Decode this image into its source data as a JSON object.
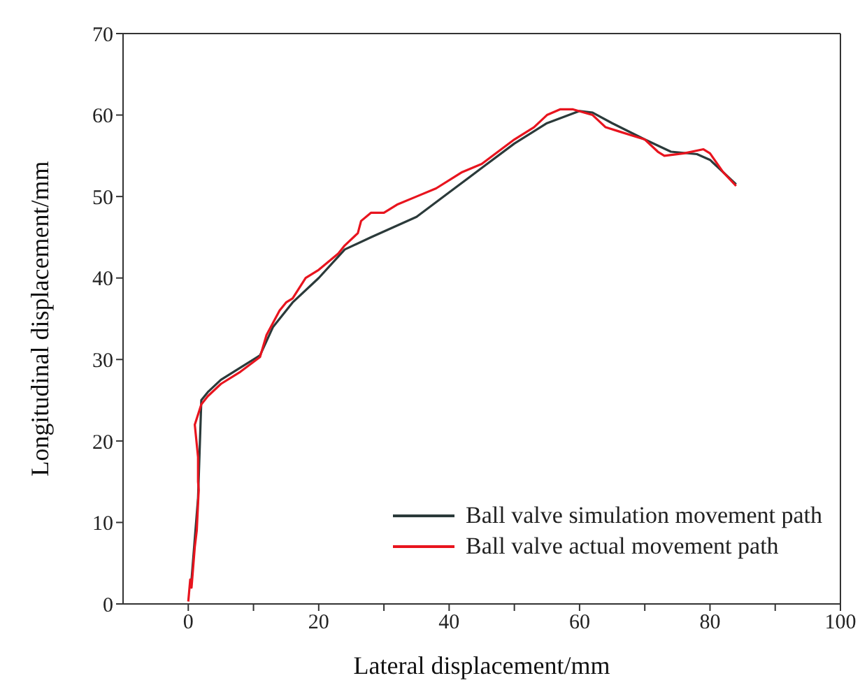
{
  "chart_data": {
    "type": "line",
    "xlabel": "Lateral displacement/mm",
    "ylabel": "Longitudinal displacement/mm",
    "xlim": [
      -10,
      100
    ],
    "xticks": [
      0,
      {
        "value": 10,
        "label": null
      },
      20,
      {
        "value": 30,
        "label": null
      },
      40,
      {
        "value": 50,
        "label": null
      },
      60,
      {
        "value": 70,
        "label": null
      },
      80,
      {
        "value": 90,
        "label": null
      },
      100
    ],
    "ylim": [
      0,
      70
    ],
    "yticks": [
      0,
      10,
      20,
      30,
      40,
      50,
      60,
      70
    ],
    "grid": false,
    "legend": "bottom right",
    "marker": "none",
    "line_style": "solid",
    "series": [
      {
        "name": "Ball valve simulation movement path",
        "color": "#2b3a3a",
        "x": [
          0.5,
          1,
          1.5,
          2,
          3,
          5,
          8,
          11,
          13,
          16,
          20,
          24,
          28,
          35,
          40,
          45,
          50,
          55,
          60,
          62,
          65,
          70,
          74,
          78,
          80,
          84
        ],
        "values": [
          3,
          8,
          13,
          25,
          26,
          27.5,
          29,
          30.5,
          34,
          37,
          40,
          43.5,
          45,
          47.5,
          50.5,
          53.5,
          56.5,
          59,
          60.5,
          60.3,
          59,
          57,
          55.5,
          55.2,
          54.5,
          51.5
        ]
      },
      {
        "name": "Ball valve actual movement path",
        "color": "#e8141e",
        "x": [
          0,
          0.3,
          0.5,
          1,
          1.3,
          1.6,
          1.5,
          1.5,
          1,
          2,
          3,
          5,
          8,
          11,
          12,
          14,
          15,
          16,
          18,
          20,
          23,
          24,
          26,
          26.5,
          28,
          30,
          32,
          35,
          38,
          42,
          45,
          50,
          53,
          55,
          57,
          59,
          62,
          64,
          66,
          70,
          72,
          73,
          76,
          79,
          80,
          82,
          84
        ],
        "values": [
          0.3,
          3,
          2,
          7,
          9,
          14,
          15,
          18,
          22,
          24.5,
          25.5,
          27,
          28.5,
          30.3,
          33,
          36,
          37,
          37.5,
          40,
          41,
          43,
          44,
          45.5,
          47,
          48,
          48,
          49,
          50,
          51,
          53,
          54,
          57,
          58.5,
          60,
          60.7,
          60.7,
          60,
          58.5,
          58,
          57,
          55.5,
          55,
          55.3,
          55.8,
          55.3,
          53,
          51.3
        ]
      }
    ]
  }
}
